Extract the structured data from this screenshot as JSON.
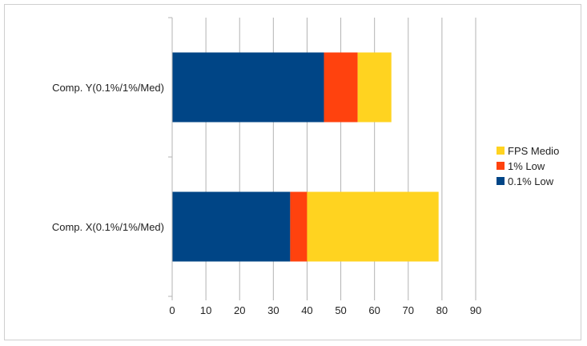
{
  "chart_data": {
    "type": "bar",
    "orientation": "horizontal",
    "stacked": true,
    "categories": [
      "Comp. Y(0.1%/1%/Med)",
      "Comp. X(0.1%/1%/Med)"
    ],
    "series": [
      {
        "name": "0.1% Low",
        "values": [
          45,
          35
        ],
        "color": "#004586"
      },
      {
        "name": "1% Low",
        "values": [
          10,
          5
        ],
        "color": "#ff420e"
      },
      {
        "name": "FPS Medio",
        "values": [
          10,
          39
        ],
        "color": "#ffd320"
      }
    ],
    "xlim": [
      0,
      90
    ],
    "xticks": [
      0,
      10,
      20,
      30,
      40,
      50,
      60,
      70,
      80,
      90
    ],
    "grid": true,
    "legend_position": "right",
    "legend_order": [
      "FPS Medio",
      "1% Low",
      "0.1% Low"
    ],
    "title": "",
    "xlabel": "",
    "ylabel": ""
  }
}
